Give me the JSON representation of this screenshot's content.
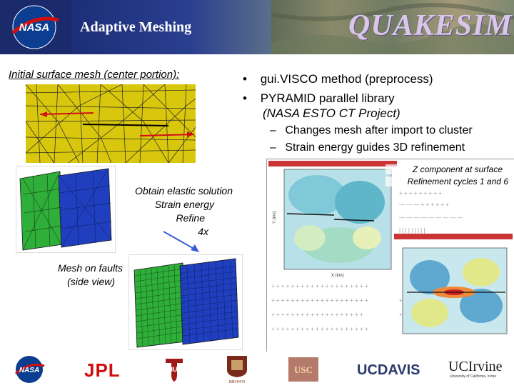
{
  "header": {
    "title": "Adaptive Meshing",
    "logo_text": "NASA",
    "project_logo_text": "QUAKESIM"
  },
  "left": {
    "title": "Initial surface mesh (center portion):",
    "steps": [
      "Obtain elastic solution",
      "Strain energy",
      "Refine",
      "4x"
    ],
    "faults_caption": [
      "Mesh on faults",
      "(side view)"
    ]
  },
  "bullets": [
    {
      "main": "gui.VISCO method (preprocess)"
    },
    {
      "main": "PYRAMID parallel library",
      "sub": "(NASA ESTO CT Project)"
    }
  ],
  "subbullets": [
    "Changes mesh after import to cluster",
    "Strain energy guides 3D refinement"
  ],
  "plots": {
    "caption": [
      "Z component at surface",
      "Refinement cycles 1 and 6"
    ],
    "y_axis_label": "Y (km)",
    "x_axis_label": "X (km)"
  },
  "footer": {
    "logos": [
      "NASA",
      "JPL",
      "IU",
      "BROWN",
      "USC",
      "UCDAVIS",
      "UCIrvine"
    ],
    "ucirvine_sub": "University of California, Irvine"
  },
  "colors": {
    "title_band": "#1c2e78",
    "mesh_yellow": "#d9c70e",
    "mesh_green": "#2fae3a",
    "mesh_blue": "#1f3fbf",
    "arrow_red": "#d01010",
    "callout_blue": "#3a5fd6"
  }
}
